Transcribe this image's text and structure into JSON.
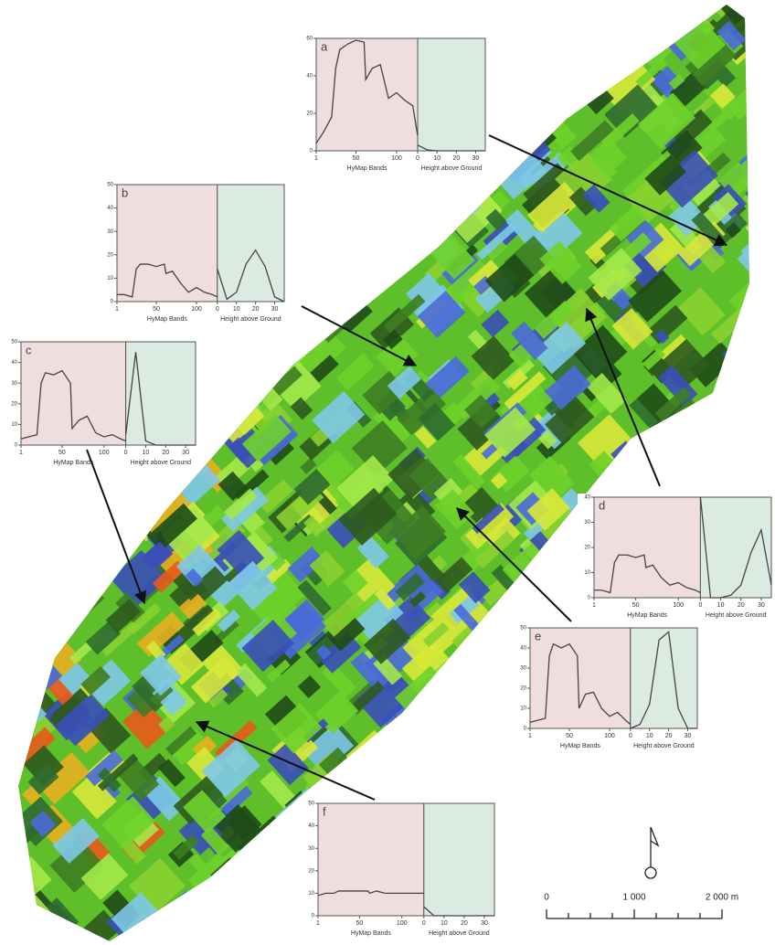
{
  "bands": [
    1,
    10,
    20,
    25,
    30,
    40,
    50,
    60,
    62,
    70,
    80,
    90,
    100,
    110,
    120,
    126
  ],
  "heights": [
    0,
    5,
    10,
    15,
    20,
    25,
    30,
    35
  ],
  "band_lim": [
    1,
    126
  ],
  "band_ticks": [
    1,
    50,
    100
  ],
  "band_title": "HyMap Bands",
  "height_lim": [
    0,
    35
  ],
  "height_ticks": [
    0,
    10,
    20,
    30
  ],
  "height_title": "Height above Ground",
  "insets": [
    {
      "label": "a",
      "ylim": [
        0,
        60
      ],
      "yticks": [
        0,
        20,
        40,
        60
      ],
      "spectrum": [
        4,
        10,
        18,
        44,
        54,
        57,
        59,
        58,
        38,
        44,
        46,
        28,
        31,
        27,
        24,
        8
      ],
      "height": [
        3,
        0.5,
        0,
        0,
        0,
        0,
        0,
        0
      ]
    },
    {
      "label": "b",
      "ylim": [
        0,
        50
      ],
      "yticks": [
        0,
        10,
        20,
        30,
        40,
        50
      ],
      "spectrum": [
        3,
        3,
        2,
        14,
        16,
        16,
        15,
        16,
        12,
        13,
        8,
        4,
        6,
        4,
        3,
        2
      ],
      "height": [
        14,
        1,
        4,
        16,
        22,
        15,
        2,
        0
      ]
    },
    {
      "label": "c",
      "ylim": [
        0,
        50
      ],
      "yticks": [
        0,
        10,
        20,
        30,
        40,
        50
      ],
      "spectrum": [
        3,
        4,
        5,
        30,
        35,
        34,
        36,
        30,
        8,
        12,
        14,
        6,
        4,
        5,
        3,
        2
      ],
      "height": [
        5,
        45,
        2,
        0,
        0,
        0,
        0,
        0
      ]
    },
    {
      "label": "d",
      "ylim": [
        0,
        40
      ],
      "yticks": [
        0,
        10,
        20,
        30,
        40
      ],
      "spectrum": [
        3,
        3,
        2,
        14,
        17,
        17,
        16,
        17,
        12,
        13,
        8,
        5,
        6,
        4,
        3,
        2
      ],
      "height": [
        40,
        0,
        0,
        1,
        5,
        18,
        27,
        5
      ]
    },
    {
      "label": "e",
      "ylim": [
        0,
        50
      ],
      "yticks": [
        0,
        10,
        20,
        30,
        40,
        50
      ],
      "spectrum": [
        3,
        4,
        5,
        36,
        42,
        40,
        42,
        36,
        10,
        17,
        18,
        10,
        6,
        8,
        4,
        2
      ],
      "height": [
        0,
        2,
        12,
        44,
        48,
        10,
        0,
        0
      ]
    },
    {
      "label": "f",
      "ylim": [
        0,
        50
      ],
      "yticks": [
        0,
        10,
        20,
        30,
        40,
        50
      ],
      "spectrum": [
        9,
        10,
        10,
        11,
        11,
        11,
        11,
        11,
        10,
        11,
        10,
        10,
        10,
        10,
        10,
        10
      ],
      "height": [
        4,
        0,
        0,
        0,
        0,
        0,
        0,
        0
      ]
    }
  ],
  "scale": {
    "labels": [
      "0",
      "1 000",
      "2 000 m"
    ]
  }
}
